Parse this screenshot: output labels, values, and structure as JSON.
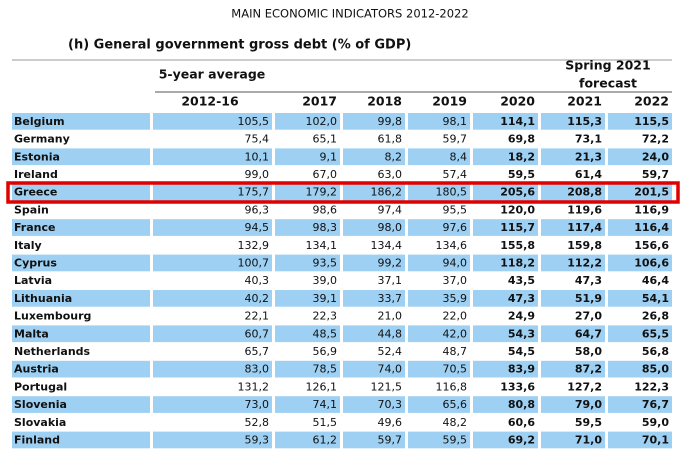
{
  "header": {
    "title": "MAIN ECONOMIC INDICATORS 2012-2022",
    "subtitle": "(h) General government gross debt (% of GDP)",
    "average_label": "5-year average",
    "forecast_label": [
      "Spring 2021",
      "forecast"
    ]
  },
  "table": {
    "columns": [
      "2012-16",
      "2017",
      "2018",
      "2019",
      "2020",
      "2021",
      "2022"
    ],
    "rows": [
      [
        "Belgium",
        "105,5",
        "102,0",
        "99,8",
        "98,1",
        "114,1",
        "115,3",
        "115,5"
      ],
      [
        "Germany",
        "75,4",
        "65,1",
        "61,8",
        "59,7",
        "69,8",
        "73,1",
        "72,2"
      ],
      [
        "Estonia",
        "10,1",
        "9,1",
        "8,2",
        "8,4",
        "18,2",
        "21,3",
        "24,0"
      ],
      [
        "Ireland",
        "99,0",
        "67,0",
        "63,0",
        "57,4",
        "59,5",
        "61,4",
        "59,7"
      ],
      [
        "Greece",
        "175,7",
        "179,2",
        "186,2",
        "180,5",
        "205,6",
        "208,8",
        "201,5"
      ],
      [
        "Spain",
        "96,3",
        "98,6",
        "97,4",
        "95,5",
        "120,0",
        "119,6",
        "116,9"
      ],
      [
        "France",
        "94,5",
        "98,3",
        "98,0",
        "97,6",
        "115,7",
        "117,4",
        "116,4"
      ],
      [
        "Italy",
        "132,9",
        "134,1",
        "134,4",
        "134,6",
        "155,8",
        "159,8",
        "156,6"
      ],
      [
        "Cyprus",
        "100,7",
        "93,5",
        "99,2",
        "94,0",
        "118,2",
        "112,2",
        "106,6"
      ],
      [
        "Latvia",
        "40,3",
        "39,0",
        "37,1",
        "37,0",
        "43,5",
        "47,3",
        "46,4"
      ],
      [
        "Lithuania",
        "40,2",
        "39,1",
        "33,7",
        "35,9",
        "47,3",
        "51,9",
        "54,1"
      ],
      [
        "Luxembourg",
        "22,1",
        "22,3",
        "21,0",
        "22,0",
        "24,9",
        "27,0",
        "26,8"
      ],
      [
        "Malta",
        "60,7",
        "48,5",
        "44,8",
        "42,0",
        "54,3",
        "64,7",
        "65,5"
      ],
      [
        "Netherlands",
        "65,7",
        "56,9",
        "52,4",
        "48,7",
        "54,5",
        "58,0",
        "56,8"
      ],
      [
        "Austria",
        "83,0",
        "78,5",
        "74,0",
        "70,5",
        "83,9",
        "87,2",
        "85,0"
      ],
      [
        "Portugal",
        "131,2",
        "126,1",
        "121,5",
        "116,8",
        "133,6",
        "127,2",
        "122,3"
      ],
      [
        "Slovenia",
        "73,0",
        "74,1",
        "70,3",
        "65,6",
        "80,8",
        "79,0",
        "76,7"
      ],
      [
        "Slovakia",
        "52,8",
        "51,5",
        "49,6",
        "48,2",
        "60,6",
        "59,5",
        "59,0"
      ],
      [
        "Finland",
        "59,3",
        "61,2",
        "59,7",
        "59,5",
        "69,2",
        "71,0",
        "70,1"
      ]
    ]
  }
}
